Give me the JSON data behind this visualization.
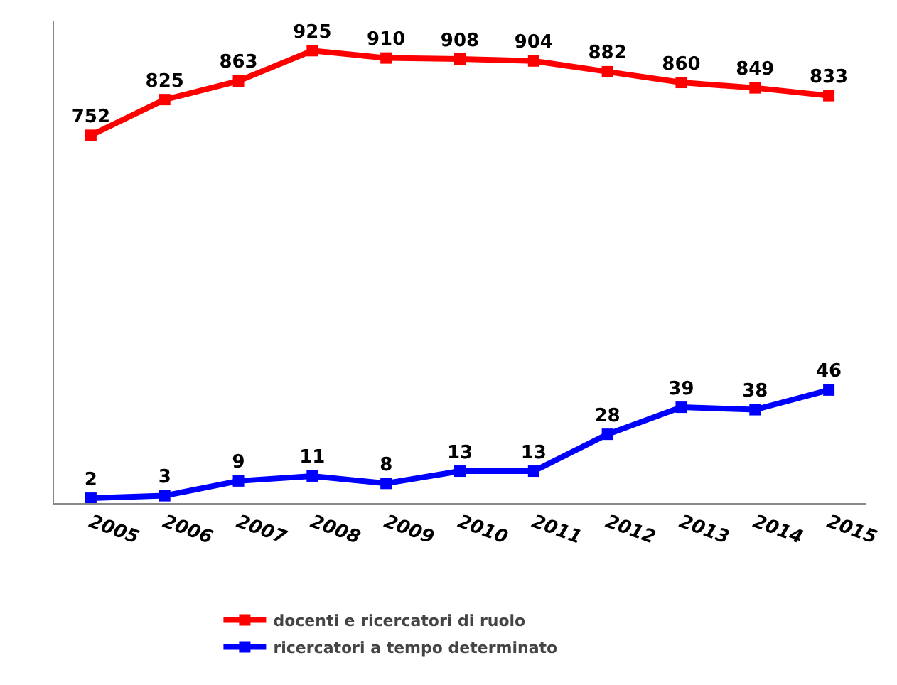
{
  "chart_data": {
    "type": "line",
    "categories": [
      "2005",
      "2006",
      "2007",
      "2008",
      "2009",
      "2010",
      "2011",
      "2012",
      "2013",
      "2014",
      "2015"
    ],
    "series": [
      {
        "name": "docenti e ricercatori di ruolo",
        "color": "#ff0000",
        "values": [
          752,
          825,
          863,
          925,
          910,
          908,
          904,
          882,
          860,
          849,
          833
        ]
      },
      {
        "name": "ricercatori a tempo determinato",
        "color": "#0000ff",
        "axis": "y2",
        "values": [
          2,
          3,
          9,
          11,
          8,
          13,
          13,
          28,
          39,
          38,
          46
        ]
      }
    ],
    "ylim": [
      0,
      985
    ],
    "y2lim": [
      0,
      196
    ],
    "data_labels": true,
    "marker": "square",
    "line_style": "solid",
    "grid": false,
    "legend": "bottom"
  }
}
